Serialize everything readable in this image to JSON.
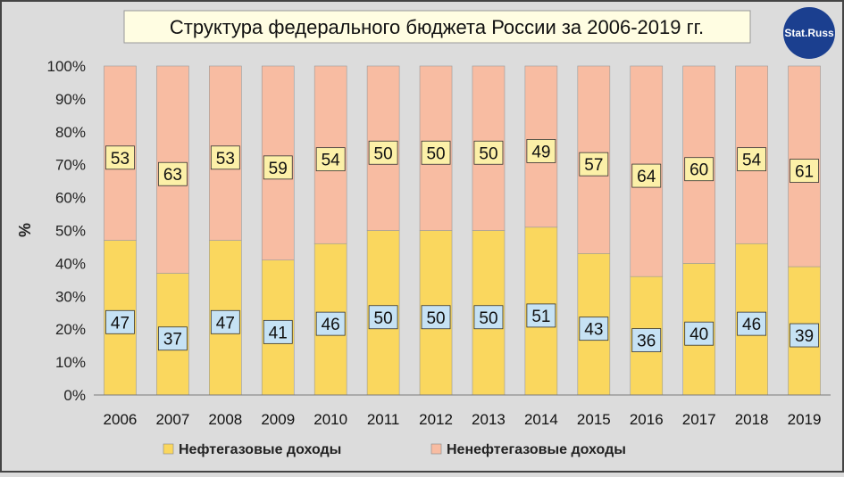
{
  "chart_data": {
    "type": "bar",
    "stacked": true,
    "percent": true,
    "title": "Структура федерального бюджета России за 2006-2019 гг.",
    "ylabel": "%",
    "ylim": [
      0,
      100
    ],
    "yticks": [
      "0%",
      "10%",
      "20%",
      "30%",
      "40%",
      "50%",
      "60%",
      "70%",
      "80%",
      "90%",
      "100%"
    ],
    "categories": [
      "2006",
      "2007",
      "2008",
      "2009",
      "2010",
      "2011",
      "2012",
      "2013",
      "2014",
      "2015",
      "2016",
      "2017",
      "2018",
      "2019"
    ],
    "series": [
      {
        "name": "Нефтегазовые доходы",
        "color": "#fad75e",
        "label_bg": "#c6e2f4",
        "values": [
          47,
          37,
          47,
          41,
          46,
          50,
          50,
          50,
          51,
          43,
          36,
          40,
          46,
          39
        ]
      },
      {
        "name": "Ненефтегазовые доходы",
        "color": "#f8bca2",
        "label_bg": "#fcf0a8",
        "values": [
          53,
          63,
          53,
          59,
          54,
          50,
          50,
          50,
          49,
          57,
          64,
          60,
          54,
          61
        ]
      }
    ],
    "grid": false,
    "legend": "bottom"
  },
  "logo": {
    "text": "Stat.Russ",
    "color": "#1b3f8f"
  },
  "colors": {
    "background": "#dcdcdc",
    "title_box": "#fffde2",
    "axis": "#7a7a7a"
  }
}
